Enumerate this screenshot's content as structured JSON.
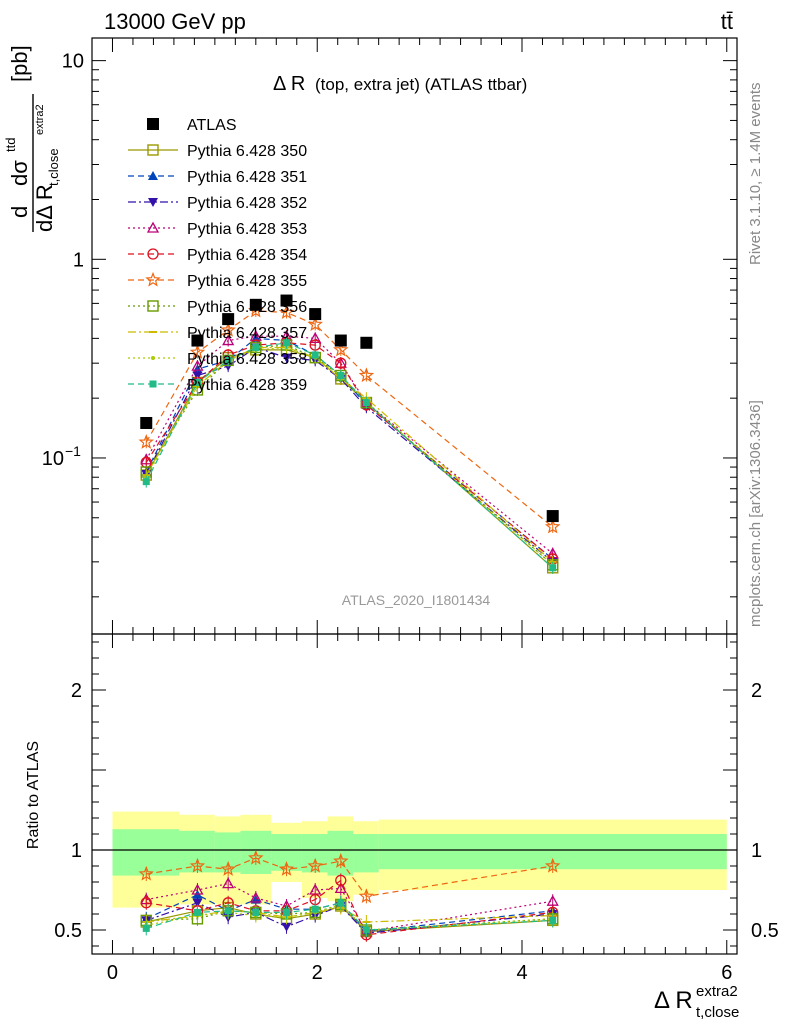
{
  "header": {
    "energy_label": "13000 GeV pp",
    "process_label": "tt̄"
  },
  "side_text": {
    "rivet": "Rivet 3.1.10, ≥ 1.4M events",
    "mcplots": "mcplots.cern.ch [arXiv:1306.3436]"
  },
  "chart_data": [
    {
      "type": "scatter",
      "title": "Δ R (top, extra jet) (ATLAS ttbar)",
      "title_main": "Δ R",
      "title_sub": "(top, extra jet) (ATLAS ttbar)",
      "watermark": "ATLAS_2020_I1801434",
      "ylabel": "dσ^ttd / dΔ R_t,close^extra2 [pb]",
      "ylabel_unit": "[pb]",
      "ylim": [
        0.013,
        13
      ],
      "yscale": "log",
      "xlim": [
        -0.2,
        6.1
      ],
      "y_tick_labels": [
        "10",
        "1",
        "10⁻¹"
      ],
      "x": [
        0.33,
        0.83,
        1.13,
        1.4,
        1.7,
        1.98,
        2.23,
        2.48,
        4.3
      ],
      "data": {
        "name": "ATLAS",
        "values": [
          0.15,
          0.39,
          0.5,
          0.59,
          0.62,
          0.53,
          0.39,
          0.38,
          0.051
        ]
      },
      "series": [
        {
          "name": "Pythia 6.428 350",
          "color": "#999900",
          "marker": "open-square",
          "dash": "solid",
          "values": [
            0.082,
            0.24,
            0.32,
            0.35,
            0.35,
            0.32,
            0.25,
            0.19,
            0.028
          ]
        },
        {
          "name": "Pythia 6.428 351",
          "color": "#0044bb",
          "marker": "filled-triangle",
          "dash": "dashed",
          "values": [
            0.085,
            0.28,
            0.31,
            0.4,
            0.39,
            0.33,
            0.26,
            0.185,
            0.031
          ]
        },
        {
          "name": "Pythia 6.428 352",
          "color": "#3311aa",
          "marker": "filled-triangle-down",
          "dash": "dashdot",
          "values": [
            0.083,
            0.26,
            0.29,
            0.36,
            0.32,
            0.31,
            0.25,
            0.18,
            0.03
          ]
        },
        {
          "name": "Pythia 6.428 353",
          "color": "#bb0077",
          "marker": "open-triangle",
          "dash": "dotted",
          "values": [
            0.098,
            0.29,
            0.39,
            0.41,
            0.41,
            0.4,
            0.3,
            0.19,
            0.033
          ]
        },
        {
          "name": "Pythia 6.428 354",
          "color": "#dd1122",
          "marker": "open-circle",
          "dash": "dashed",
          "values": [
            0.095,
            0.24,
            0.33,
            0.37,
            0.38,
            0.37,
            0.3,
            0.185,
            0.031
          ]
        },
        {
          "name": "Pythia 6.428 355",
          "color": "#ee6611",
          "marker": "open-star",
          "dash": "dashed",
          "values": [
            0.12,
            0.34,
            0.44,
            0.55,
            0.54,
            0.47,
            0.35,
            0.26,
            0.045
          ]
        },
        {
          "name": "Pythia 6.428 356",
          "color": "#669900",
          "marker": "open-square",
          "dash": "dotted",
          "values": [
            0.085,
            0.22,
            0.31,
            0.36,
            0.37,
            0.32,
            0.26,
            0.19,
            0.029
          ]
        },
        {
          "name": "Pythia 6.428 357",
          "color": "#ccbb00",
          "marker": "dash",
          "dash": "dashdot",
          "values": [
            0.082,
            0.23,
            0.31,
            0.36,
            0.36,
            0.32,
            0.25,
            0.2,
            0.03
          ]
        },
        {
          "name": "Pythia 6.428 358",
          "color": "#aacc00",
          "marker": "dot",
          "dash": "dotted",
          "values": [
            0.08,
            0.23,
            0.31,
            0.35,
            0.36,
            0.32,
            0.26,
            0.19,
            0.029
          ]
        },
        {
          "name": "Pythia 6.428 359",
          "color": "#22bb88",
          "marker": "filled-square",
          "dash": "dashed",
          "values": [
            0.076,
            0.24,
            0.31,
            0.36,
            0.38,
            0.33,
            0.26,
            0.19,
            0.028
          ]
        }
      ]
    },
    {
      "type": "scatter",
      "ylabel": "Ratio to ATLAS",
      "xlabel": "Δ R_t,close^extra2",
      "xlabel_main": "Δ R",
      "xlabel_sup": "extra2",
      "xlabel_sub": "t,close",
      "ylim": [
        0.35,
        2.35
      ],
      "xlim": [
        -0.2,
        6.1
      ],
      "x_tick_labels": [
        "0",
        "2",
        "4",
        "6"
      ],
      "y_tick_labels": [
        "0.5",
        "1",
        "2"
      ],
      "bin_edges": [
        0.0,
        0.65,
        1.0,
        1.25,
        1.55,
        1.85,
        2.1,
        2.35,
        2.6,
        6.0
      ],
      "band_inner": [
        [
          0.84,
          1.13
        ],
        [
          0.86,
          1.12
        ],
        [
          0.86,
          1.11
        ],
        [
          0.85,
          1.12
        ],
        [
          0.87,
          1.1
        ],
        [
          0.86,
          1.1
        ],
        [
          0.84,
          1.12
        ],
        [
          0.86,
          1.1
        ],
        [
          0.88,
          1.1
        ]
      ],
      "band_outer": [
        [
          0.64,
          1.24
        ],
        [
          0.66,
          1.22
        ],
        [
          0.66,
          1.21
        ],
        [
          0.66,
          1.22
        ],
        [
          0.8,
          1.17
        ],
        [
          0.7,
          1.18
        ],
        [
          0.68,
          1.21
        ],
        [
          0.72,
          1.18
        ],
        [
          0.75,
          1.19
        ]
      ],
      "ratios": [
        [
          0.55,
          0.62,
          0.64,
          0.6,
          0.57,
          0.6,
          0.65,
          0.49,
          0.56
        ],
        [
          0.57,
          0.72,
          0.62,
          0.69,
          0.63,
          0.63,
          0.67,
          0.49,
          0.62
        ],
        [
          0.56,
          0.67,
          0.58,
          0.61,
          0.52,
          0.59,
          0.65,
          0.48,
          0.6
        ],
        [
          0.69,
          0.75,
          0.79,
          0.7,
          0.65,
          0.75,
          0.76,
          0.49,
          0.68
        ],
        [
          0.67,
          0.62,
          0.67,
          0.62,
          0.62,
          0.69,
          0.81,
          0.47,
          0.61
        ],
        [
          0.85,
          0.9,
          0.88,
          0.95,
          0.88,
          0.9,
          0.93,
          0.71,
          0.9
        ],
        [
          0.56,
          0.57,
          0.62,
          0.61,
          0.6,
          0.61,
          0.66,
          0.5,
          0.57
        ],
        [
          0.55,
          0.59,
          0.62,
          0.61,
          0.58,
          0.61,
          0.64,
          0.55,
          0.59
        ],
        [
          0.53,
          0.59,
          0.61,
          0.59,
          0.58,
          0.61,
          0.66,
          0.5,
          0.57
        ],
        [
          0.51,
          0.61,
          0.62,
          0.61,
          0.61,
          0.63,
          0.67,
          0.5,
          0.56
        ]
      ]
    }
  ]
}
